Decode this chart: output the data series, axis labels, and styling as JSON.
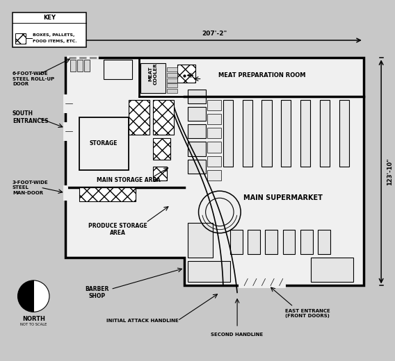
{
  "bg_color": "#c8c8c8",
  "floor_bg": "#f2f2f2",
  "wall_color": "#000000",
  "dim_width": "207'-2\"",
  "dim_height": "123'-10\"",
  "labels": {
    "key_title": "KEY",
    "key_item1": "BOXES, PALLETS,",
    "key_item2": "FOOD ITEMS, ETC.",
    "six_foot": "6-FOOT-WIDE\nSTEEL ROLL-UP\nDOOR",
    "south_entrances": "SOUTH\nENTRANCES",
    "storage": "STORAGE",
    "main_storage": "MAIN STORAGE AREA",
    "three_foot": "3-FOOT-WIDE\nSTEEL\nMAN-DOOR",
    "produce_storage": "PRODUCE STORAGE\nAREA",
    "meat_cooler": "MEAT\nCOOLER",
    "meat_prep": "MEAT PREPARATION ROOM",
    "main_supermarket": "MAIN SUPERMARKET",
    "barber_shop": "BARBER\nSHOP",
    "north_label": "NORTH",
    "not_to_scale": "NOT TO SCALE",
    "initial_handline": "INITIAL ATTACK HANDLINE",
    "second_handline": "SECOND HANDLINE",
    "east_entrance": "EAST ENTRANCE\n(FRONT DOORS)"
  }
}
